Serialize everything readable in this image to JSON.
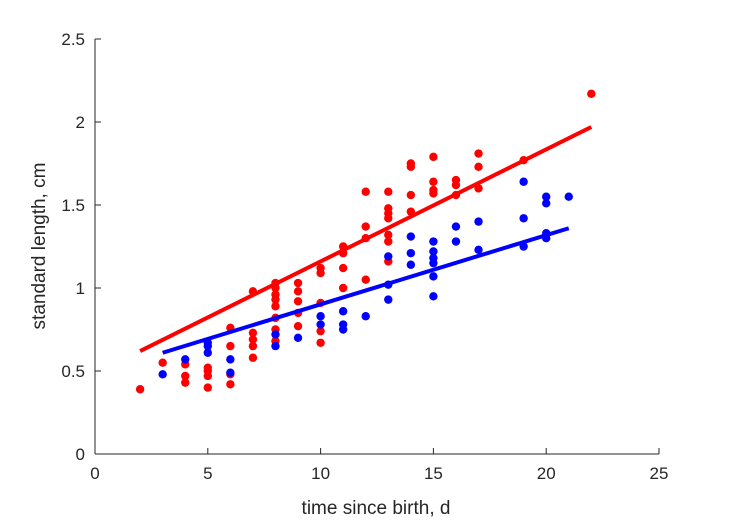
{
  "chart_data": {
    "type": "scatter",
    "title": "",
    "xlabel": "time since birth, d",
    "ylabel": "standard length, cm",
    "xlim": [
      0,
      25
    ],
    "ylim": [
      0,
      2.5
    ],
    "xticks": [
      "0",
      "5",
      "10",
      "15",
      "20",
      "25"
    ],
    "yticks": [
      "0",
      "0.5",
      "1",
      "1.5",
      "2",
      "2.5"
    ],
    "grid": false,
    "axis_color": "#262626",
    "series": [
      {
        "color": "#ff0000",
        "points": [
          [
            2,
            0.39
          ],
          [
            3,
            0.55
          ],
          [
            4,
            0.43
          ],
          [
            4,
            0.47
          ],
          [
            4,
            0.54
          ],
          [
            5,
            0.4
          ],
          [
            5,
            0.47
          ],
          [
            5,
            0.5
          ],
          [
            5,
            0.52
          ],
          [
            6,
            0.42
          ],
          [
            6,
            0.48
          ],
          [
            6,
            0.65
          ],
          [
            6,
            0.76
          ],
          [
            7,
            0.58
          ],
          [
            7,
            0.65
          ],
          [
            7,
            0.69
          ],
          [
            7,
            0.73
          ],
          [
            7,
            0.98
          ],
          [
            8,
            0.68
          ],
          [
            8,
            0.75
          ],
          [
            8,
            0.82
          ],
          [
            8,
            0.89
          ],
          [
            8,
            0.93
          ],
          [
            8,
            0.96
          ],
          [
            8,
            1.0
          ],
          [
            8,
            1.03
          ],
          [
            9,
            0.77
          ],
          [
            9,
            0.85
          ],
          [
            9,
            0.92
          ],
          [
            9,
            0.98
          ],
          [
            9,
            1.03
          ],
          [
            10,
            0.67
          ],
          [
            10,
            0.74
          ],
          [
            10,
            0.91
          ],
          [
            10,
            1.09
          ],
          [
            10,
            1.12
          ],
          [
            11,
            1.0
          ],
          [
            11,
            1.12
          ],
          [
            11,
            1.21
          ],
          [
            11,
            1.25
          ],
          [
            12,
            1.05
          ],
          [
            12,
            1.3
          ],
          [
            12,
            1.37
          ],
          [
            12,
            1.58
          ],
          [
            13,
            1.16
          ],
          [
            13,
            1.28
          ],
          [
            13,
            1.32
          ],
          [
            13,
            1.42
          ],
          [
            13,
            1.45
          ],
          [
            13,
            1.48
          ],
          [
            13,
            1.58
          ],
          [
            14,
            1.46
          ],
          [
            14,
            1.56
          ],
          [
            14,
            1.73
          ],
          [
            14,
            1.75
          ],
          [
            15,
            1.57
          ],
          [
            15,
            1.59
          ],
          [
            15,
            1.64
          ],
          [
            15,
            1.79
          ],
          [
            16,
            1.56
          ],
          [
            16,
            1.62
          ],
          [
            16,
            1.65
          ],
          [
            17,
            1.6
          ],
          [
            17,
            1.73
          ],
          [
            17,
            1.81
          ],
          [
            19,
            1.77
          ],
          [
            22,
            2.17
          ]
        ],
        "fit": [
          [
            2,
            0.62
          ],
          [
            22,
            1.97
          ]
        ]
      },
      {
        "color": "#0000ff",
        "points": [
          [
            3,
            0.48
          ],
          [
            4,
            0.57
          ],
          [
            5,
            0.61
          ],
          [
            5,
            0.65
          ],
          [
            5,
            0.67
          ],
          [
            6,
            0.49
          ],
          [
            6,
            0.57
          ],
          [
            8,
            0.65
          ],
          [
            8,
            0.72
          ],
          [
            9,
            0.7
          ],
          [
            10,
            0.78
          ],
          [
            10,
            0.83
          ],
          [
            11,
            0.75
          ],
          [
            11,
            0.78
          ],
          [
            11,
            0.86
          ],
          [
            12,
            0.83
          ],
          [
            13,
            0.93
          ],
          [
            13,
            1.02
          ],
          [
            13,
            1.19
          ],
          [
            14,
            1.14
          ],
          [
            14,
            1.21
          ],
          [
            14,
            1.31
          ],
          [
            15,
            0.95
          ],
          [
            15,
            1.07
          ],
          [
            15,
            1.15
          ],
          [
            15,
            1.18
          ],
          [
            15,
            1.22
          ],
          [
            15,
            1.28
          ],
          [
            16,
            1.28
          ],
          [
            16,
            1.37
          ],
          [
            17,
            1.23
          ],
          [
            17,
            1.4
          ],
          [
            19,
            1.25
          ],
          [
            19,
            1.42
          ],
          [
            19,
            1.64
          ],
          [
            20,
            1.3
          ],
          [
            20,
            1.33
          ],
          [
            20,
            1.51
          ],
          [
            20,
            1.55
          ],
          [
            21,
            1.55
          ]
        ],
        "fit": [
          [
            3,
            0.61
          ],
          [
            21,
            1.36
          ]
        ]
      }
    ]
  }
}
